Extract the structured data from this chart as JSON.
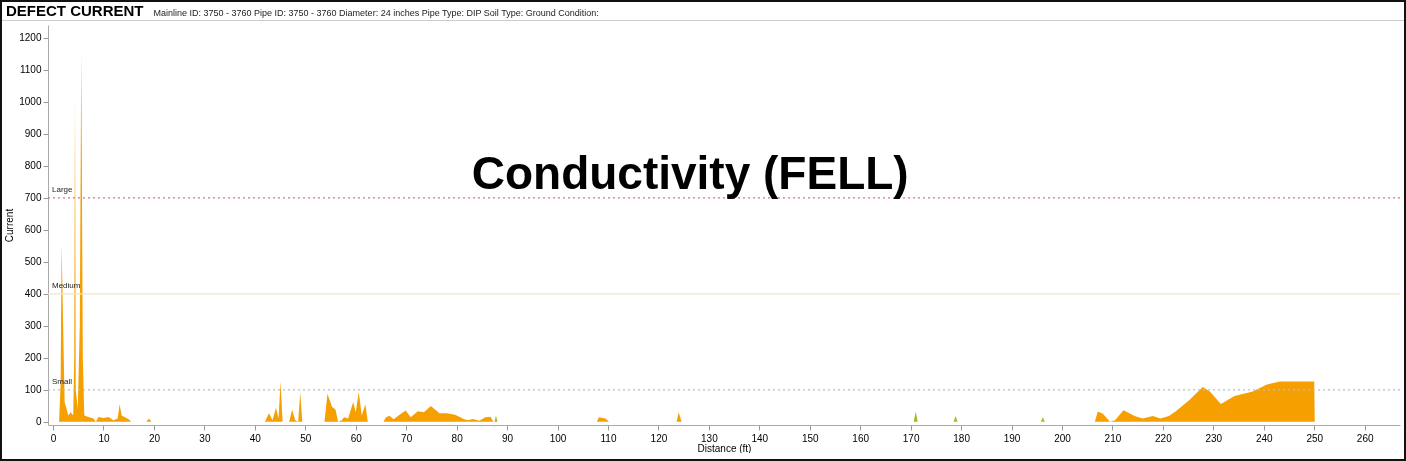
{
  "chart_data": {
    "type": "area",
    "title": "DEFECT CURRENT",
    "subtitle": "Mainline ID: 3750 - 3760 Pipe ID: 3750 - 3760 Diameter: 24 inches Pipe Type: DIP Soil Type: Ground Condition:",
    "xlabel": "Distance (ft)",
    "ylabel": "Current",
    "annotations": [
      "Conductivity (FELL)"
    ],
    "xlim": [
      -1,
      267
    ],
    "xticks": [
      0,
      10,
      20,
      30,
      40,
      50,
      60,
      70,
      80,
      90,
      100,
      110,
      120,
      130,
      140,
      150,
      160,
      170,
      180,
      190,
      200,
      210,
      220,
      230,
      240,
      250,
      260
    ],
    "ylim": [
      -10,
      1240
    ],
    "yticks": [
      0,
      100,
      200,
      300,
      400,
      500,
      600,
      700,
      800,
      900,
      1000,
      1100,
      1200
    ],
    "ref_lines": [
      {
        "axis": "y",
        "value": 700,
        "label": "Large",
        "color": "#e0707c",
        "line_style": "dotted"
      },
      {
        "axis": "y",
        "value": 400,
        "label": "Medium",
        "color": "#eeeac0",
        "line_style": "solid"
      },
      {
        "axis": "y",
        "value": 100,
        "label": "Small",
        "color": "#b4c0cc",
        "line_style": "dotted"
      }
    ],
    "series": [
      {
        "color": "#f5a000",
        "x": [
          0,
          1.2,
          1.5,
          1.7,
          2.0,
          2.3,
          2.7,
          3.0,
          3.5,
          4.0,
          4.2,
          4.35,
          4.5,
          4.9,
          5.3,
          5.6,
          5.9,
          6.2,
          7,
          8,
          8.5,
          9,
          10,
          11,
          12,
          12.8,
          13.2,
          13.6,
          15,
          15.5,
          18.5,
          19,
          19.5,
          42,
          42.8,
          43.5,
          44.2,
          44.7,
          45.1,
          45.5,
          46.8,
          47.4,
          48.0,
          48.6,
          49.0,
          49.4,
          53.8,
          54.4,
          55.3,
          56.0,
          56.5,
          57.2,
          57.7,
          58.5,
          59.5,
          60.0,
          60.6,
          61.2,
          61.9,
          62.4,
          65.5,
          66.0,
          66.7,
          67.5,
          68.5,
          69.9,
          70.9,
          72.3,
          73.5,
          74.9,
          76.6,
          78.0,
          79.7,
          81.5,
          82.3,
          83.2,
          84.5,
          85.7,
          86.7,
          87.3,
          107.8,
          108.2,
          109.5,
          110.2,
          123.6,
          124.0,
          124.6,
          206.5,
          207.1,
          208.1,
          209.5,
          210.5,
          212.2,
          214.4,
          216,
          218.0,
          219.5,
          221.2,
          222.5,
          225.2,
          227.9,
          229.3,
          231.5,
          234.2,
          237.8,
          240.5,
          243.2,
          245.9,
          250,
          250.1
        ],
        "values": [
          0,
          0,
          120,
          555,
          300,
          60,
          40,
          20,
          30,
          20,
          200,
          1015,
          100,
          40,
          300,
          1155,
          200,
          20,
          15,
          10,
          0,
          15,
          12,
          15,
          5,
          10,
          55,
          20,
          8,
          0,
          0,
          10,
          0,
          0,
          27,
          5,
          44,
          10,
          126,
          0,
          0,
          38,
          5,
          0,
          93,
          0,
          0,
          88,
          47,
          38,
          0,
          5,
          14,
          10,
          62,
          30,
          93,
          20,
          55,
          0,
          0,
          14,
          19,
          8,
          20,
          35,
          14,
          33,
          30,
          49,
          27,
          27,
          22,
          8,
          5,
          9,
          3,
          14,
          16,
          0,
          0,
          14,
          10,
          0,
          0,
          30,
          0,
          0,
          32,
          25,
          0,
          5,
          36,
          18,
          10,
          18,
          10,
          18,
          32,
          67,
          109,
          95,
          56,
          81,
          95,
          116,
          126,
          126,
          126,
          0
        ]
      },
      {
        "color": "#a8b820",
        "x": [
          87.5,
          87.8,
          88.1,
          170.6,
          171.0,
          171.4,
          178.5,
          178.9,
          179.3,
          195.8,
          196.2,
          196.6
        ],
        "values": [
          0,
          20,
          0,
          0,
          32,
          0,
          0,
          18,
          0,
          0,
          14,
          0
        ]
      }
    ]
  }
}
